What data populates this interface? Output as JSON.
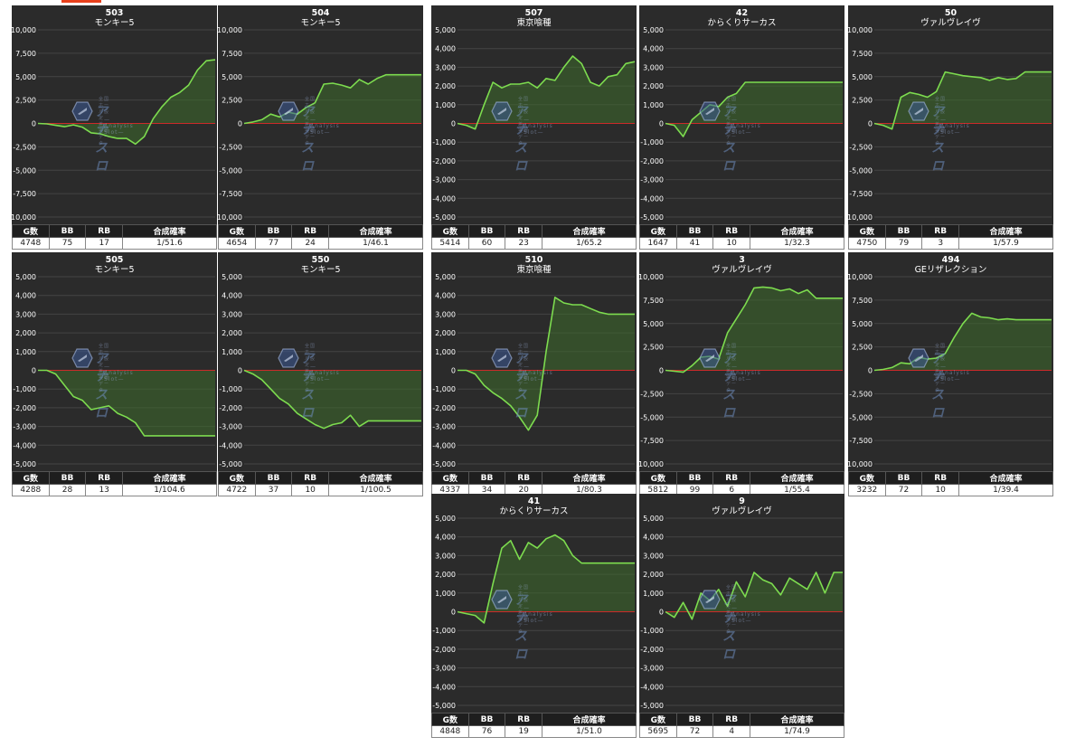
{
  "columns": [
    "G数",
    "BB",
    "RB",
    "合成確率"
  ],
  "watermark": {
    "main": "アナスロ",
    "sub": "—Analysis Slot—",
    "top": "全国ホール設定差・実戦データ"
  },
  "colors": {
    "panel_bg": "#2b2b2b",
    "line": "#7ddc4f",
    "fill": "#3e6b2c",
    "zero_line": "#cc2a2a",
    "grid": "#444444",
    "axis_text": "#ffffff"
  },
  "chart_data": [
    {
      "type": "area",
      "number": "503",
      "machine": "モンキー5",
      "ymin": -10000,
      "ymax": 10000,
      "yticks": [
        "10,000",
        "7,500",
        "5,000",
        "2,500",
        "0",
        "-2,500",
        "-5,000",
        "-7,500",
        "-10,000"
      ],
      "x": [
        0,
        0.05,
        0.1,
        0.15,
        0.2,
        0.25,
        0.3,
        0.35,
        0.4,
        0.45,
        0.5,
        0.55,
        0.6,
        0.65,
        0.7,
        0.75,
        0.8,
        0.85,
        0.9,
        0.95,
        1
      ],
      "y": [
        0,
        -50,
        -200,
        -350,
        -150,
        -400,
        -1000,
        -1100,
        -1400,
        -1600,
        -1600,
        -2200,
        -1400,
        500,
        1800,
        2800,
        3300,
        4100,
        5700,
        6700,
        6800
      ],
      "stats": {
        "g": "4748",
        "bb": "75",
        "rb": "17",
        "rate": "1/51.6"
      }
    },
    {
      "type": "area",
      "number": "504",
      "machine": "モンキー5",
      "ymin": -10000,
      "ymax": 10000,
      "yticks": [
        "10,000",
        "7,500",
        "5,000",
        "2,500",
        "0",
        "-2,500",
        "-5,000",
        "-7,500",
        "-10,000"
      ],
      "x": [
        0,
        0.05,
        0.1,
        0.15,
        0.2,
        0.25,
        0.3,
        0.35,
        0.4,
        0.45,
        0.5,
        0.55,
        0.6,
        0.65,
        0.7,
        0.75,
        0.8,
        0.85,
        0.9,
        0.95,
        1
      ],
      "y": [
        0,
        150,
        400,
        1000,
        700,
        1200,
        1000,
        1700,
        2200,
        4200,
        4300,
        4100,
        3800,
        4700,
        4200,
        4800,
        5200,
        5200,
        5200,
        5200,
        5200
      ],
      "stats": {
        "g": "4654",
        "bb": "77",
        "rb": "24",
        "rate": "1/46.1"
      }
    },
    {
      "type": "area",
      "number": "507",
      "machine": "東京喰種",
      "ymin": -5000,
      "ymax": 5000,
      "yticks": [
        "5,000",
        "4,000",
        "3,000",
        "2,000",
        "1,000",
        "0",
        "-1,000",
        "-2,000",
        "-3,000",
        "-4,000",
        "-5,000"
      ],
      "x": [
        0,
        0.05,
        0.1,
        0.15,
        0.2,
        0.25,
        0.3,
        0.35,
        0.4,
        0.45,
        0.5,
        0.55,
        0.6,
        0.65,
        0.7,
        0.75,
        0.8,
        0.85,
        0.9,
        0.95,
        1
      ],
      "y": [
        0,
        -100,
        -300,
        1000,
        2200,
        1900,
        2100,
        2100,
        2200,
        1900,
        2400,
        2300,
        3000,
        3600,
        3200,
        2200,
        2000,
        2500,
        2600,
        3200,
        3300
      ],
      "stats": {
        "g": "5414",
        "bb": "60",
        "rb": "23",
        "rate": "1/65.2"
      }
    },
    {
      "type": "area",
      "number": "42",
      "machine": "からくりサーカス",
      "ymin": -5000,
      "ymax": 5000,
      "yticks": [
        "5,000",
        "4,000",
        "3,000",
        "2,000",
        "1,000",
        "0",
        "-1,000",
        "-2,000",
        "-3,000",
        "-4,000",
        "-5,000"
      ],
      "x": [
        0,
        0.05,
        0.1,
        0.15,
        0.2,
        0.25,
        0.3,
        0.35,
        0.4,
        0.45,
        0.5,
        0.55,
        0.6,
        0.65,
        0.7,
        0.75,
        0.8,
        0.85,
        0.9,
        0.95,
        1
      ],
      "y": [
        0,
        -100,
        -700,
        200,
        600,
        1000,
        900,
        1400,
        1600,
        2200,
        2200,
        2200,
        2200,
        2200,
        2200,
        2200,
        2200,
        2200,
        2200,
        2200,
        2200
      ],
      "stats": {
        "g": "1647",
        "bb": "41",
        "rb": "10",
        "rate": "1/32.3"
      }
    },
    {
      "type": "area",
      "number": "50",
      "machine": "ヴァルヴレイヴ",
      "ymin": -10000,
      "ymax": 10000,
      "yticks": [
        "10,000",
        "7,500",
        "5,000",
        "2,500",
        "0",
        "-2,500",
        "-5,000",
        "-7,500",
        "-10,000"
      ],
      "x": [
        0,
        0.05,
        0.1,
        0.15,
        0.2,
        0.25,
        0.3,
        0.35,
        0.4,
        0.45,
        0.5,
        0.55,
        0.6,
        0.65,
        0.7,
        0.75,
        0.8,
        0.85,
        0.9,
        0.95,
        1
      ],
      "y": [
        0,
        -200,
        -600,
        2800,
        3300,
        3100,
        2800,
        3400,
        5500,
        5300,
        5100,
        5000,
        4900,
        4600,
        4900,
        4700,
        4800,
        5500,
        5500,
        5500,
        5500
      ],
      "stats": {
        "g": "4750",
        "bb": "79",
        "rb": "3",
        "rate": "1/57.9"
      }
    },
    {
      "type": "area",
      "number": "505",
      "machine": "モンキー5",
      "ymin": -5000,
      "ymax": 5000,
      "yticks": [
        "5,000",
        "4,000",
        "3,000",
        "2,000",
        "1,000",
        "0",
        "-1,000",
        "-2,000",
        "-3,000",
        "-4,000",
        "-5,000"
      ],
      "x": [
        0,
        0.05,
        0.1,
        0.15,
        0.2,
        0.25,
        0.3,
        0.35,
        0.4,
        0.45,
        0.5,
        0.55,
        0.6,
        0.65,
        0.7,
        0.75,
        0.8,
        0.85,
        0.9,
        0.95,
        1
      ],
      "y": [
        0,
        0,
        -200,
        -800,
        -1400,
        -1600,
        -2100,
        -2000,
        -1900,
        -2300,
        -2500,
        -2800,
        -3500,
        -3500,
        -3500,
        -3500,
        -3500,
        -3500,
        -3500,
        -3500,
        -3500
      ],
      "stats": {
        "g": "4288",
        "bb": "28",
        "rb": "13",
        "rate": "1/104.6"
      }
    },
    {
      "type": "area",
      "number": "550",
      "machine": "モンキー5",
      "ymin": -5000,
      "ymax": 5000,
      "yticks": [
        "5,000",
        "4,000",
        "3,000",
        "2,000",
        "1,000",
        "0",
        "-1,000",
        "-2,000",
        "-3,000",
        "-4,000",
        "-5,000"
      ],
      "x": [
        0,
        0.05,
        0.1,
        0.15,
        0.2,
        0.25,
        0.3,
        0.35,
        0.4,
        0.45,
        0.5,
        0.55,
        0.6,
        0.65,
        0.7,
        0.75,
        0.8,
        0.85,
        0.9,
        0.95,
        1
      ],
      "y": [
        0,
        -200,
        -500,
        -1000,
        -1500,
        -1800,
        -2300,
        -2600,
        -2900,
        -3100,
        -2900,
        -2800,
        -2400,
        -3000,
        -2700,
        -2700,
        -2700,
        -2700,
        -2700,
        -2700,
        -2700
      ],
      "stats": {
        "g": "4722",
        "bb": "37",
        "rb": "10",
        "rate": "1/100.5"
      }
    },
    {
      "type": "area",
      "number": "510",
      "machine": "東京喰種",
      "ymin": -5000,
      "ymax": 5000,
      "yticks": [
        "5,000",
        "4,000",
        "3,000",
        "2,000",
        "1,000",
        "0",
        "-1,000",
        "-2,000",
        "-3,000",
        "-4,000",
        "-5,000"
      ],
      "x": [
        0,
        0.05,
        0.1,
        0.15,
        0.2,
        0.25,
        0.3,
        0.35,
        0.4,
        0.45,
        0.5,
        0.55,
        0.6,
        0.65,
        0.7,
        0.75,
        0.8,
        0.85,
        0.9,
        0.95,
        1
      ],
      "y": [
        0,
        0,
        -200,
        -800,
        -1200,
        -1500,
        -1900,
        -2500,
        -3200,
        -2400,
        1000,
        3900,
        3600,
        3500,
        3500,
        3300,
        3100,
        3000,
        3000,
        3000,
        3000
      ],
      "stats": {
        "g": "4337",
        "bb": "34",
        "rb": "20",
        "rate": "1/80.3"
      }
    },
    {
      "type": "area",
      "number": "3",
      "machine": "ヴァルヴレイヴ",
      "ymin": -10000,
      "ymax": 10000,
      "yticks": [
        "10,000",
        "7,500",
        "5,000",
        "2,500",
        "0",
        "-2,500",
        "-5,000",
        "-7,500",
        "-10,000"
      ],
      "x": [
        0,
        0.05,
        0.1,
        0.15,
        0.2,
        0.25,
        0.3,
        0.35,
        0.4,
        0.45,
        0.5,
        0.55,
        0.6,
        0.65,
        0.7,
        0.75,
        0.8,
        0.85,
        0.9,
        0.95,
        1
      ],
      "y": [
        0,
        -100,
        -200,
        500,
        1400,
        1500,
        1200,
        4000,
        5500,
        7000,
        8800,
        8900,
        8800,
        8500,
        8700,
        8200,
        8600,
        7700,
        7700,
        7700,
        7700
      ],
      "stats": {
        "g": "5812",
        "bb": "99",
        "rb": "6",
        "rate": "1/55.4"
      }
    },
    {
      "type": "area",
      "number": "494",
      "machine": "GEリザレクション",
      "ymin": -10000,
      "ymax": 10000,
      "yticks": [
        "10,000",
        "7,500",
        "5,000",
        "2,500",
        "0",
        "-2,500",
        "-5,000",
        "-7,500",
        "-10,000"
      ],
      "x": [
        0,
        0.05,
        0.1,
        0.15,
        0.2,
        0.25,
        0.3,
        0.35,
        0.4,
        0.45,
        0.5,
        0.55,
        0.6,
        0.65,
        0.7,
        0.75,
        0.8,
        0.85,
        0.9,
        0.95,
        1
      ],
      "y": [
        0,
        100,
        300,
        800,
        700,
        1400,
        1200,
        1300,
        1800,
        3500,
        5000,
        6100,
        5700,
        5600,
        5400,
        5500,
        5400,
        5400,
        5400,
        5400,
        5400
      ],
      "stats": {
        "g": "3232",
        "bb": "72",
        "rb": "10",
        "rate": "1/39.4"
      }
    },
    {
      "type": "area",
      "number": "41",
      "machine": "からくりサーカス",
      "ymin": -5000,
      "ymax": 5000,
      "yticks": [
        "5,000",
        "4,000",
        "3,000",
        "2,000",
        "1,000",
        "0",
        "-1,000",
        "-2,000",
        "-3,000",
        "-4,000",
        "-5,000"
      ],
      "x": [
        0,
        0.05,
        0.1,
        0.15,
        0.2,
        0.25,
        0.3,
        0.35,
        0.4,
        0.45,
        0.5,
        0.55,
        0.6,
        0.65,
        0.7,
        0.75,
        0.8,
        0.85,
        0.9,
        0.95,
        1
      ],
      "y": [
        0,
        -100,
        -200,
        -600,
        1500,
        3400,
        3800,
        2800,
        3700,
        3400,
        3900,
        4100,
        3800,
        3000,
        2600,
        2600,
        2600,
        2600,
        2600,
        2600,
        2600
      ],
      "stats": {
        "g": "4848",
        "bb": "76",
        "rb": "19",
        "rate": "1/51.0"
      }
    },
    {
      "type": "area",
      "number": "9",
      "machine": "ヴァルヴレイヴ",
      "ymin": -5000,
      "ymax": 5000,
      "yticks": [
        "5,000",
        "4,000",
        "3,000",
        "2,000",
        "1,000",
        "0",
        "-1,000",
        "-2,000",
        "-3,000",
        "-4,000",
        "-5,000"
      ],
      "x": [
        0,
        0.05,
        0.1,
        0.15,
        0.2,
        0.25,
        0.3,
        0.35,
        0.4,
        0.45,
        0.5,
        0.55,
        0.6,
        0.65,
        0.7,
        0.75,
        0.8,
        0.85,
        0.9,
        0.95,
        1
      ],
      "y": [
        0,
        -300,
        500,
        -400,
        1000,
        600,
        1200,
        300,
        1600,
        800,
        2100,
        1700,
        1500,
        900,
        1800,
        1500,
        1200,
        2100,
        1000,
        2100,
        2100
      ],
      "stats": {
        "g": "5695",
        "bb": "72",
        "rb": "4",
        "rate": "1/74.9"
      }
    }
  ]
}
